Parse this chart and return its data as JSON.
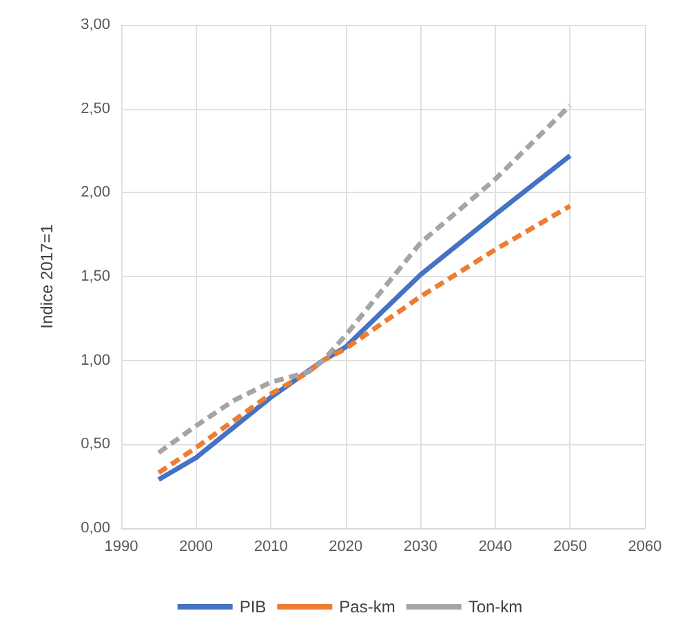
{
  "chart_data": {
    "type": "line",
    "ylabel": "Indice 2017=1",
    "xlim": [
      1990,
      2060
    ],
    "xticks": [
      1990,
      2000,
      2010,
      2020,
      2030,
      2040,
      2050,
      2060
    ],
    "ylim": [
      0,
      3
    ],
    "yticks": [
      {
        "value": 0,
        "label": "0,00"
      },
      {
        "value": 0.5,
        "label": "0,50"
      },
      {
        "value": 1,
        "label": "1,00"
      },
      {
        "value": 1.5,
        "label": "1,50"
      },
      {
        "value": 2,
        "label": "2,00"
      },
      {
        "value": 2.5,
        "label": "2,50"
      },
      {
        "value": 3,
        "label": "3,00"
      }
    ],
    "grid": true,
    "legend": "bottom",
    "marker": "none",
    "series": [
      {
        "name": "PIB",
        "color": "#4472c4",
        "line_style": "solid",
        "x": [
          1995,
          2000,
          2010,
          2017,
          2020,
          2030,
          2040,
          2050
        ],
        "values": [
          0.29,
          0.42,
          0.78,
          1.0,
          1.08,
          1.51,
          1.87,
          2.22
        ]
      },
      {
        "name": "Pas-km",
        "color": "#ed7d31",
        "line_style": "dashed",
        "x": [
          1995,
          2000,
          2010,
          2015,
          2017,
          2020,
          2030,
          2040,
          2050
        ],
        "values": [
          0.33,
          0.48,
          0.8,
          0.93,
          1.0,
          1.07,
          1.38,
          1.66,
          1.92
        ]
      },
      {
        "name": "Ton-km",
        "color": "#a5a5a5",
        "line_style": "dashed",
        "x": [
          1995,
          2000,
          2005,
          2010,
          2015,
          2017,
          2020,
          2030,
          2040,
          2050
        ],
        "values": [
          0.45,
          0.61,
          0.76,
          0.87,
          0.93,
          1.0,
          1.15,
          1.7,
          2.08,
          2.52
        ]
      }
    ]
  }
}
